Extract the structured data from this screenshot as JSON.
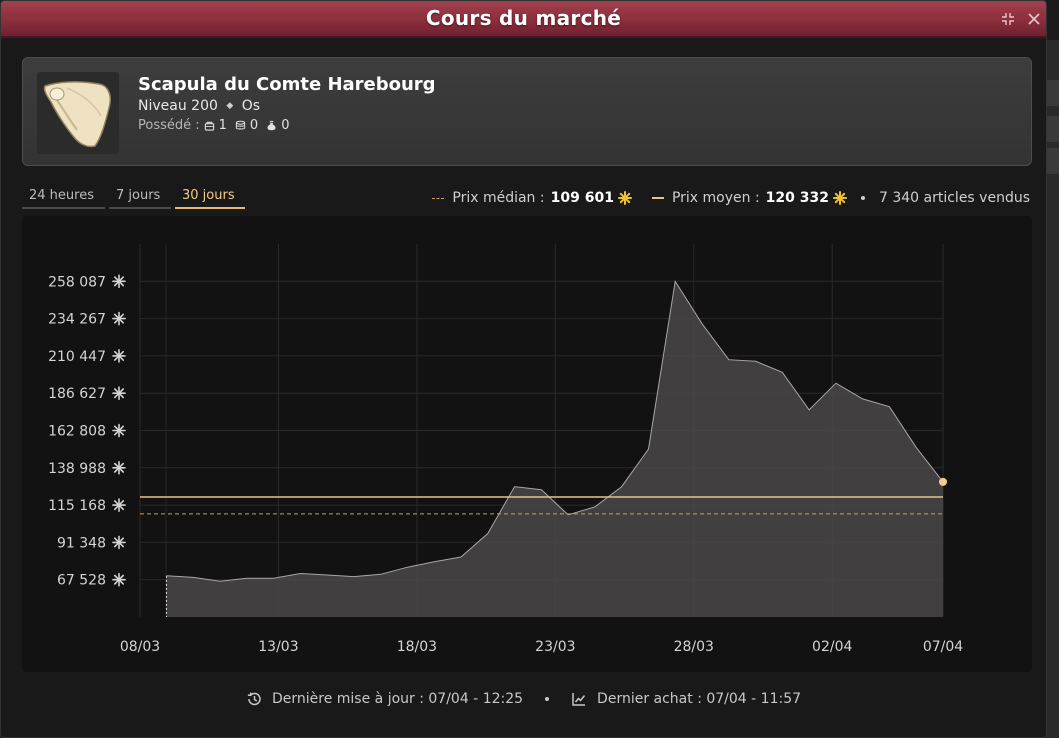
{
  "window": {
    "title": "Cours du marché"
  },
  "item": {
    "name": "Scapula du Comte Harebourg",
    "level": "Niveau 200",
    "type": "Os",
    "owned_label": "Possédé :",
    "owned": [
      {
        "icon": "inventory-icon",
        "count": "1"
      },
      {
        "icon": "bank-icon",
        "count": "0"
      },
      {
        "icon": "bag-icon",
        "count": "0"
      }
    ]
  },
  "tabs": [
    {
      "label": "24 heures",
      "active": false
    },
    {
      "label": "7 jours",
      "active": false
    },
    {
      "label": "30 jours",
      "active": true
    }
  ],
  "stats": {
    "median_label": "Prix médian :",
    "median_value": "109 601",
    "mean_label": "Prix moyen :",
    "mean_value": "120 332",
    "sold": "7 340 articles vendus"
  },
  "colors": {
    "accent": "#e8b86c",
    "median_line": "#d99a5a",
    "mean_line": "#e8c48a",
    "area_fill": "#4a4848",
    "area_stroke": "#a9a6a6"
  },
  "chart_data": {
    "type": "area",
    "x_tick_labels": [
      "08/03",
      "13/03",
      "18/03",
      "23/03",
      "28/03",
      "02/04",
      "07/04"
    ],
    "y_tick_labels": [
      "67 528",
      "91 348",
      "115 168",
      "138 988",
      "162 808",
      "186 627",
      "210 447",
      "234 267",
      "258 087"
    ],
    "y_ticks": [
      67528,
      91348,
      115168,
      138988,
      162808,
      186627,
      210447,
      234267,
      258087
    ],
    "ylim": [
      43708,
      281907
    ],
    "xlim": [
      0,
      29
    ],
    "x": [
      0,
      1,
      2,
      3,
      4,
      5,
      6,
      7,
      8,
      9,
      10,
      11,
      12,
      13,
      14,
      15,
      16,
      17,
      18,
      19,
      20,
      21,
      22,
      23,
      24,
      25,
      26,
      27,
      28,
      29
    ],
    "values": [
      70000,
      69000,
      66500,
      68500,
      68500,
      71500,
      70500,
      69500,
      71000,
      75500,
      79000,
      82000,
      97000,
      127000,
      125000,
      109000,
      114000,
      127000,
      151000,
      258000,
      231000,
      208000,
      207000,
      200000,
      176000,
      193000,
      183000,
      178000,
      152000,
      130000
    ],
    "median": 109601,
    "mean": 120332,
    "grid": true
  },
  "footer": {
    "last_update": "Dernière mise à jour : 07/04 - 12:25",
    "last_purchase": "Dernier achat : 07/04 - 11:57"
  }
}
